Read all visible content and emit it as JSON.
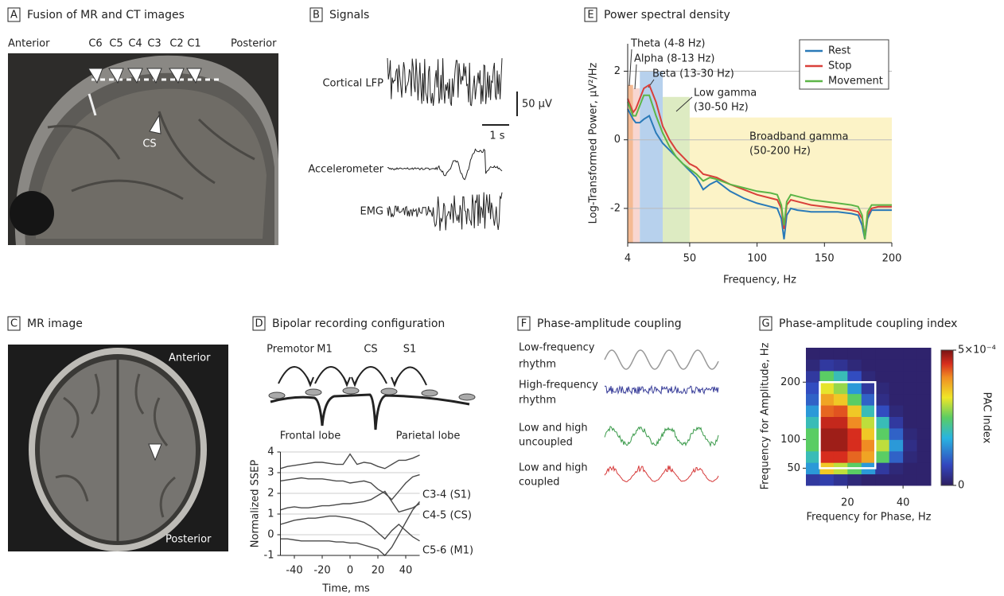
{
  "panel_a": {
    "letter": "A",
    "title": "Fusion of MR and CT images",
    "anterior": "Anterior",
    "posterior": "Posterior",
    "contacts": [
      "C6",
      "C5",
      "C4",
      "C3",
      "C2",
      "C1"
    ],
    "sulcus": "CS"
  },
  "panel_b": {
    "letter": "B",
    "title": "Signals",
    "traces": [
      "Cortical LFP",
      "Accelerometer",
      "EMG"
    ],
    "amplitude_scale": "50 μV",
    "time_scale": "1 s"
  },
  "panel_c": {
    "letter": "C",
    "title": "MR image",
    "anterior": "Anterior",
    "posterior": "Posterior"
  },
  "panel_d": {
    "letter": "D",
    "title": "Bipolar recording configuration",
    "regions": [
      "Premotor",
      "M1",
      "CS",
      "S1"
    ],
    "lobes": [
      "Frontal lobe",
      "Parietal lobe"
    ]
  },
  "panel_f": {
    "letter": "F",
    "title": "Phase-amplitude coupling",
    "rows": [
      [
        "Low-frequency",
        "rhythm"
      ],
      [
        "High-frequency",
        "rhythm"
      ],
      [
        "Low and high",
        "uncoupled"
      ],
      [
        "Low and high",
        "coupled"
      ]
    ]
  },
  "chart_data": [
    {
      "type": "line",
      "letter": "E",
      "title": "Power spectral density",
      "x_label": "Frequency, Hz",
      "y_label": "Log-Transformed Power, μV²/Hz",
      "x": [
        4,
        6,
        8,
        10,
        13,
        16,
        20,
        25,
        30,
        35,
        40,
        45,
        50,
        55,
        60,
        65,
        70,
        80,
        90,
        100,
        110,
        115,
        118,
        120,
        122,
        125,
        130,
        140,
        150,
        160,
        170,
        175,
        178,
        180,
        182,
        185,
        190,
        200
      ],
      "xlim": [
        4,
        200
      ],
      "xticks": [
        4,
        50,
        100,
        150,
        200
      ],
      "ylim": [
        -3,
        2.8
      ],
      "yticks": [
        -2,
        0,
        2
      ],
      "grid": true,
      "legend": "upper right",
      "bands": [
        {
          "label": [
            "Theta (4-8 Hz)"
          ],
          "range": [
            4,
            8
          ],
          "top": 1.6,
          "color": "#f2ae80"
        },
        {
          "label": [
            "Alpha (8-13 Hz)"
          ],
          "range": [
            8,
            13
          ],
          "top": 1.5,
          "color": "#f7cfc8"
        },
        {
          "label": [
            "Beta (13-30 Hz)"
          ],
          "range": [
            13,
            30
          ],
          "top": 2.0,
          "color": "#aac9ea"
        },
        {
          "label": [
            "Low gamma",
            "(30-50 Hz)"
          ],
          "range": [
            30,
            50
          ],
          "top": 1.25,
          "color": "#d7e7b7"
        },
        {
          "label": [
            "Broadband gamma",
            "(50-200 Hz)"
          ],
          "range": [
            50,
            200
          ],
          "top": 0.65,
          "color": "#fbf1bd"
        }
      ],
      "series": [
        {
          "name": "Rest",
          "color": "#2a7ab8",
          "values": [
            0.9,
            0.75,
            0.6,
            0.5,
            0.5,
            0.6,
            0.7,
            0.2,
            -0.1,
            -0.3,
            -0.5,
            -0.7,
            -0.9,
            -1.1,
            -1.45,
            -1.3,
            -1.2,
            -1.5,
            -1.7,
            -1.85,
            -1.95,
            -2.0,
            -2.3,
            -2.9,
            -2.2,
            -2.0,
            -2.05,
            -2.1,
            -2.1,
            -2.1,
            -2.15,
            -2.2,
            -2.5,
            -2.9,
            -2.3,
            -2.05,
            -2.05,
            -2.05
          ]
        },
        {
          "name": "Stop",
          "color": "#d9403a",
          "values": [
            1.2,
            1.0,
            0.8,
            0.9,
            1.2,
            1.5,
            1.6,
            1.1,
            0.4,
            0.0,
            -0.3,
            -0.5,
            -0.7,
            -0.8,
            -1.0,
            -1.05,
            -1.1,
            -1.3,
            -1.45,
            -1.6,
            -1.7,
            -1.75,
            -2.0,
            -2.6,
            -1.9,
            -1.75,
            -1.8,
            -1.9,
            -1.95,
            -2.0,
            -2.05,
            -2.1,
            -2.3,
            -2.8,
            -2.2,
            -2.0,
            -1.95,
            -1.95
          ]
        },
        {
          "name": "Movement",
          "color": "#5cb547",
          "values": [
            1.1,
            0.9,
            0.7,
            0.7,
            1.0,
            1.3,
            1.3,
            0.7,
            0.2,
            -0.2,
            -0.5,
            -0.7,
            -0.85,
            -1.0,
            -1.2,
            -1.1,
            -1.15,
            -1.3,
            -1.4,
            -1.5,
            -1.55,
            -1.6,
            -1.9,
            -2.5,
            -1.8,
            -1.6,
            -1.65,
            -1.75,
            -1.8,
            -1.85,
            -1.9,
            -1.95,
            -2.2,
            -2.9,
            -2.1,
            -1.9,
            -1.9,
            -1.9
          ]
        }
      ]
    },
    {
      "type": "line",
      "x_label": "Time, ms",
      "y_label": "Normalized SSEP",
      "color": "#4a4a4a",
      "x": [
        -50,
        -45,
        -40,
        -35,
        -30,
        -25,
        -20,
        -15,
        -10,
        -5,
        0,
        5,
        10,
        15,
        20,
        25,
        30,
        35,
        40,
        45,
        50
      ],
      "xlim": [
        -50,
        50
      ],
      "xticks": [
        -40,
        -20,
        0,
        20,
        40
      ],
      "ylim": [
        -1,
        4
      ],
      "yticks": [
        -1,
        0,
        1,
        2,
        3,
        4
      ],
      "grid": true,
      "series": [
        {
          "values": [
            3.2,
            3.3,
            3.35,
            3.4,
            3.45,
            3.5,
            3.5,
            3.45,
            3.4,
            3.4,
            3.9,
            3.4,
            3.5,
            3.45,
            3.3,
            3.2,
            3.4,
            3.6,
            3.6,
            3.7,
            3.85
          ]
        },
        {
          "values": [
            2.6,
            2.65,
            2.7,
            2.75,
            2.7,
            2.7,
            2.7,
            2.65,
            2.6,
            2.6,
            2.5,
            2.55,
            2.6,
            2.5,
            2.2,
            2.0,
            1.7,
            2.1,
            2.5,
            2.8,
            2.9
          ]
        },
        {
          "name": "C3-4 (S1)",
          "values": [
            1.2,
            1.3,
            1.35,
            1.3,
            1.3,
            1.35,
            1.4,
            1.4,
            1.45,
            1.5,
            1.5,
            1.55,
            1.6,
            1.7,
            1.9,
            2.1,
            1.6,
            1.1,
            1.2,
            1.3,
            1.5
          ]
        },
        {
          "name": "C4-5 (CS)",
          "values": [
            0.5,
            0.6,
            0.7,
            0.75,
            0.8,
            0.8,
            0.85,
            0.9,
            0.9,
            0.85,
            0.8,
            0.7,
            0.6,
            0.4,
            0.1,
            -0.2,
            0.2,
            0.5,
            0.2,
            -0.1,
            -0.3
          ]
        },
        {
          "name": "C5-6 (M1)",
          "values": [
            -0.2,
            -0.2,
            -0.25,
            -0.3,
            -0.3,
            -0.3,
            -0.3,
            -0.3,
            -0.35,
            -0.35,
            -0.4,
            -0.4,
            -0.5,
            -0.6,
            -0.7,
            -1.0,
            -0.6,
            0.0,
            0.6,
            1.2,
            1.6
          ]
        }
      ]
    },
    {
      "type": "heatmap",
      "letter": "G",
      "title": "Phase-amplitude coupling index",
      "x_label": "Frequency for Phase, Hz",
      "y_label": "Frequency for Amplitude, Hz",
      "colorbar_label": "PAC Index",
      "xbins": [
        5,
        10,
        15,
        20,
        25,
        30,
        35,
        40,
        45,
        50
      ],
      "ybins": [
        20,
        40,
        60,
        80,
        100,
        120,
        140,
        160,
        180,
        200,
        220,
        240,
        260
      ],
      "xlim": [
        5,
        50
      ],
      "xticks": [
        20,
        40
      ],
      "ylim": [
        20,
        260
      ],
      "yticks": [
        50,
        100,
        200
      ],
      "clim": [
        0,
        0.0005
      ],
      "cticks": [
        0,
        {
          "value": 0.0005,
          "label": "5×10⁻⁴"
        }
      ],
      "box": {
        "x": [
          10,
          30
        ],
        "y": [
          50,
          200
        ]
      },
      "z": [
        [
          5e-05,
          6e-05,
          4e-05,
          2e-05,
          1e-05,
          1e-05,
          1e-05,
          1e-05,
          1e-05
        ],
        [
          0.00015,
          0.00035,
          0.0003,
          0.00025,
          0.00015,
          5e-05,
          2e-05,
          1e-05,
          1e-05
        ],
        [
          0.0002,
          0.00045,
          0.00045,
          0.00042,
          0.00038,
          0.00025,
          0.0001,
          2e-05,
          1e-05
        ],
        [
          0.00025,
          0.00048,
          0.00048,
          0.00045,
          0.0004,
          0.0003,
          0.00015,
          3e-05,
          1e-05
        ],
        [
          0.00025,
          0.00048,
          0.00048,
          0.00045,
          0.00035,
          0.00025,
          0.0001,
          2e-05,
          1e-05
        ],
        [
          0.0002,
          0.00046,
          0.00046,
          0.0004,
          0.0003,
          0.0002,
          5e-05,
          1e-05,
          1e-05
        ],
        [
          0.00015,
          0.00042,
          0.00043,
          0.00035,
          0.0002,
          8e-05,
          2e-05,
          1e-05,
          1e-05
        ],
        [
          0.0001,
          0.00038,
          0.00035,
          0.00025,
          0.0001,
          3e-05,
          1e-05,
          1e-05,
          1e-05
        ],
        [
          8e-05,
          0.00032,
          0.00028,
          0.00015,
          5e-05,
          2e-05,
          1e-05,
          1e-05,
          1e-05
        ],
        [
          5e-05,
          0.00025,
          0.0002,
          8e-05,
          2e-05,
          1e-05,
          1e-05,
          1e-05,
          1e-05
        ],
        [
          2e-05,
          5e-05,
          4e-05,
          2e-05,
          1e-05,
          1e-05,
          1e-05,
          1e-05,
          1e-05
        ],
        [
          1e-05,
          1e-05,
          1e-05,
          1e-05,
          1e-05,
          1e-05,
          1e-05,
          1e-05,
          1e-05
        ]
      ]
    }
  ]
}
